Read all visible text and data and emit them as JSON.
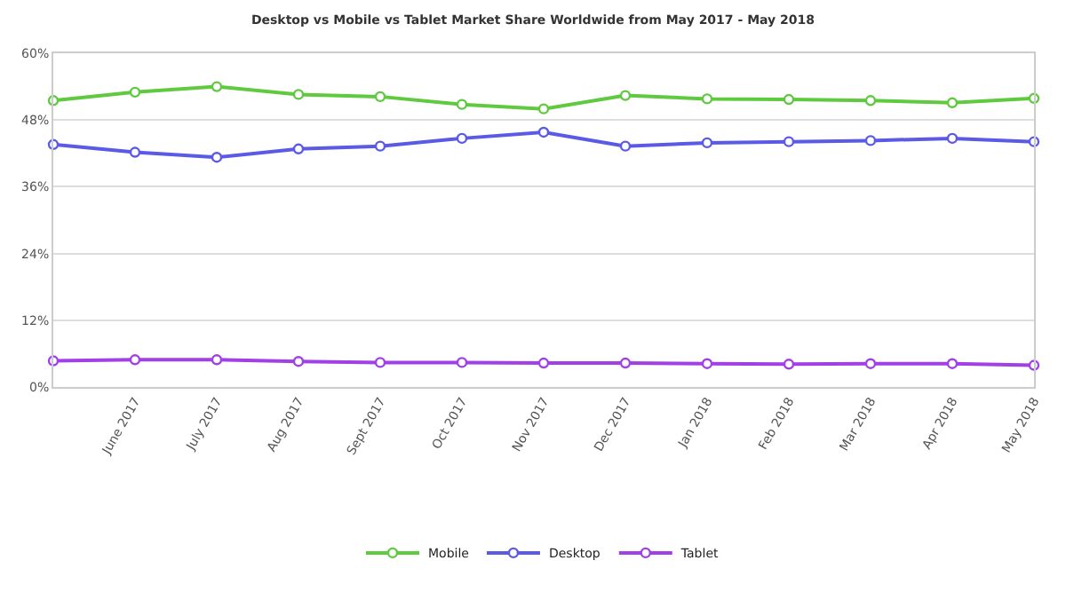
{
  "chart_data": {
    "type": "line",
    "subtitle": "Desktop vs Mobile vs Tablet Market Share Worldwide from May 2017 - May 2018",
    "categories": [
      null,
      "June 2017",
      "July 2017",
      "Aug 2017",
      "Sept 2017",
      "Oct 2017",
      "Nov 2017",
      "Dec 2017",
      "Jan 2018",
      "Feb 2018",
      "Mar 2018",
      "Apr 2018",
      "May 2018"
    ],
    "series": [
      {
        "name": "Mobile",
        "color": "#5fc93f",
        "values": [
          51.5,
          53.0,
          54.0,
          52.6,
          52.2,
          50.8,
          50.0,
          52.4,
          51.8,
          51.7,
          51.5,
          51.1,
          51.9
        ]
      },
      {
        "name": "Desktop",
        "color": "#5a5ae6",
        "values": [
          43.6,
          42.2,
          41.3,
          42.8,
          43.3,
          44.7,
          45.8,
          43.3,
          43.9,
          44.1,
          44.3,
          44.7,
          44.1
        ]
      },
      {
        "name": "Tablet",
        "color": "#a040e6",
        "values": [
          4.7,
          4.9,
          4.9,
          4.6,
          4.4,
          4.4,
          4.3,
          4.3,
          4.2,
          4.1,
          4.2,
          4.2,
          3.9
        ]
      }
    ],
    "ylim": [
      0,
      60
    ],
    "yticks": [
      {
        "value": 0,
        "label": "0%"
      },
      {
        "value": 12,
        "label": "12%"
      },
      {
        "value": 24,
        "label": "24%"
      },
      {
        "value": 36,
        "label": "36%"
      },
      {
        "value": 48,
        "label": "48%"
      },
      {
        "value": 60,
        "label": "60%"
      }
    ],
    "grid": "y",
    "legend": "bottom",
    "marker": "circle",
    "line_style": "solid"
  }
}
